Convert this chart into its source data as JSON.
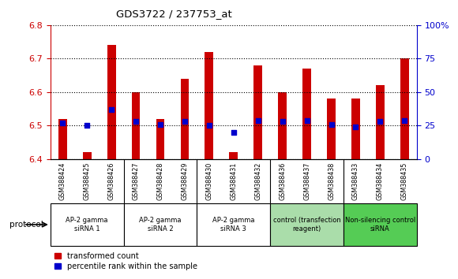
{
  "title": "GDS3722 / 237753_at",
  "samples": [
    "GSM388424",
    "GSM388425",
    "GSM388426",
    "GSM388427",
    "GSM388428",
    "GSM388429",
    "GSM388430",
    "GSM388431",
    "GSM388432",
    "GSM388436",
    "GSM388437",
    "GSM388438",
    "GSM388433",
    "GSM388434",
    "GSM388435"
  ],
  "transformed_count": [
    6.52,
    6.42,
    6.74,
    6.6,
    6.52,
    6.64,
    6.72,
    6.42,
    6.68,
    6.6,
    6.67,
    6.58,
    6.58,
    6.62,
    6.7
  ],
  "percentile_rank": [
    27,
    25,
    37,
    28,
    26,
    28,
    25,
    20,
    29,
    28,
    29,
    26,
    24,
    28,
    29
  ],
  "ylim_left": [
    6.4,
    6.8
  ],
  "ylim_right": [
    0,
    100
  ],
  "yticks_left": [
    6.4,
    6.5,
    6.6,
    6.7,
    6.8
  ],
  "yticks_right": [
    0,
    25,
    50,
    75,
    100
  ],
  "bar_color": "#cc0000",
  "dot_color": "#0000cc",
  "bar_bottom": 6.4,
  "groups": [
    {
      "label": "AP-2 gamma\nsiRNA 1",
      "indices": [
        0,
        1,
        2
      ],
      "color": "#ffffff"
    },
    {
      "label": "AP-2 gamma\nsiRNA 2",
      "indices": [
        3,
        4,
        5
      ],
      "color": "#ffffff"
    },
    {
      "label": "AP-2 gamma\nsiRNA 3",
      "indices": [
        6,
        7,
        8
      ],
      "color": "#ffffff"
    },
    {
      "label": "control (transfection\nreagent)",
      "indices": [
        9,
        10,
        11
      ],
      "color": "#aaddaa"
    },
    {
      "label": "Non-silencing control\nsiRNA",
      "indices": [
        12,
        13,
        14
      ],
      "color": "#55cc55"
    }
  ],
  "tick_color_left": "#cc0000",
  "tick_color_right": "#0000cc",
  "bg_color": "#ffffff",
  "plot_bg": "#ffffff",
  "xtick_bg": "#d0d0d0",
  "protocol_label": "protocol"
}
